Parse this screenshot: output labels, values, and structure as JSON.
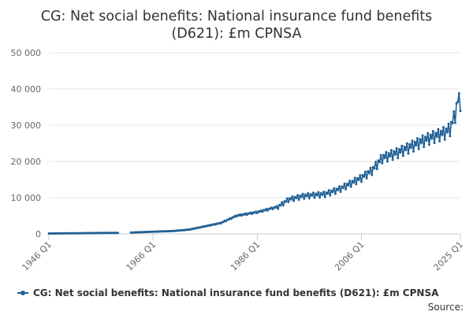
{
  "chart_data": {
    "type": "line",
    "title_line1": "CG: Net social benefits: National insurance fund benefits",
    "title_line2": "(D621): £m CPNSA",
    "xlabel": "",
    "ylabel": "",
    "ylim": [
      0,
      50000
    ],
    "yticks": [
      0,
      10000,
      20000,
      30000,
      40000,
      50000
    ],
    "ytick_labels": [
      "0",
      "10 000",
      "20 000",
      "30 000",
      "40 000",
      "50 000"
    ],
    "x_range": [
      "1946 Q1",
      "2025 Q1"
    ],
    "xtick_labels": [
      "1946 Q1",
      "1966 Q1",
      "1986 Q1",
      "2006 Q1",
      "2025 Q1"
    ],
    "xtick_positions": [
      "1946 Q1",
      "1966 Q1",
      "1986 Q1",
      "2006 Q1",
      "2025 Q1"
    ],
    "gap": [
      "1959 Q2",
      "1961 Q4"
    ],
    "grid": true,
    "legend_position": "bottom",
    "source_label": "Source:",
    "series": [
      {
        "name": "CG: Net social benefits: National insurance fund benefits (D621): £m CPNSA",
        "color": "#206095",
        "points": [
          [
            "1946 Q1",
            100
          ],
          [
            "1950 Q1",
            160
          ],
          [
            "1955 Q1",
            230
          ],
          [
            "1959 Q1",
            280
          ],
          [
            "1962 Q1",
            380
          ],
          [
            "1966 Q1",
            600
          ],
          [
            "1970 Q1",
            800
          ],
          [
            "1973 Q1",
            1200
          ],
          [
            "1975 Q1",
            1800
          ],
          [
            "1979 Q1",
            3000
          ],
          [
            "1982 Q1",
            5000
          ],
          [
            "1986 Q1",
            6000
          ],
          [
            "1990 Q1",
            7500
          ],
          [
            "1992 Q1",
            9500
          ],
          [
            "1995 Q1",
            10500
          ],
          [
            "1999 Q1",
            11000
          ],
          [
            "2002 Q1",
            12500
          ],
          [
            "2006 Q1",
            15500
          ],
          [
            "2008 Q1",
            17500
          ],
          [
            "2010 Q1",
            21000
          ],
          [
            "2013 Q1",
            22500
          ],
          [
            "2016 Q1",
            24500
          ],
          [
            "2019 Q1",
            26500
          ],
          [
            "2022 Q1",
            28000
          ],
          [
            "2023 Q1",
            29000
          ],
          [
            "2024 Q1",
            33000
          ],
          [
            "2024 Q3",
            37000
          ],
          [
            "2025 Q1",
            36500
          ]
        ]
      }
    ]
  }
}
